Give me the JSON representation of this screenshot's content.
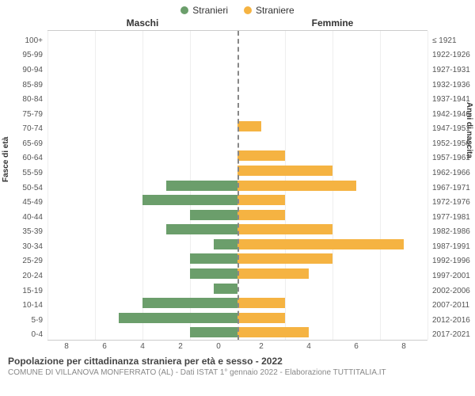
{
  "legend": {
    "male": {
      "label": "Stranieri",
      "color": "#6b9e6b"
    },
    "female": {
      "label": "Straniere",
      "color": "#f5b342"
    }
  },
  "headers": {
    "left": "Maschi",
    "right": "Femmine"
  },
  "axis_left_title": "Fasce di età",
  "axis_right_title": "Anni di nascita",
  "x_max": 8,
  "x_ticks": [
    0,
    2,
    4,
    6,
    8
  ],
  "grid_color": "#eeeeee",
  "rows": [
    {
      "age": "100+",
      "birth": "≤ 1921",
      "m": 0,
      "f": 0
    },
    {
      "age": "95-99",
      "birth": "1922-1926",
      "m": 0,
      "f": 0
    },
    {
      "age": "90-94",
      "birth": "1927-1931",
      "m": 0,
      "f": 0
    },
    {
      "age": "85-89",
      "birth": "1932-1936",
      "m": 0,
      "f": 0
    },
    {
      "age": "80-84",
      "birth": "1937-1941",
      "m": 0,
      "f": 0
    },
    {
      "age": "75-79",
      "birth": "1942-1946",
      "m": 0,
      "f": 0
    },
    {
      "age": "70-74",
      "birth": "1947-1951",
      "m": 0,
      "f": 1
    },
    {
      "age": "65-69",
      "birth": "1952-1956",
      "m": 0,
      "f": 0
    },
    {
      "age": "60-64",
      "birth": "1957-1961",
      "m": 0,
      "f": 2
    },
    {
      "age": "55-59",
      "birth": "1962-1966",
      "m": 0,
      "f": 4
    },
    {
      "age": "50-54",
      "birth": "1967-1971",
      "m": 3,
      "f": 5
    },
    {
      "age": "45-49",
      "birth": "1972-1976",
      "m": 4,
      "f": 2
    },
    {
      "age": "40-44",
      "birth": "1977-1981",
      "m": 2,
      "f": 2
    },
    {
      "age": "35-39",
      "birth": "1982-1986",
      "m": 3,
      "f": 4
    },
    {
      "age": "30-34",
      "birth": "1987-1991",
      "m": 1,
      "f": 7
    },
    {
      "age": "25-29",
      "birth": "1992-1996",
      "m": 2,
      "f": 4
    },
    {
      "age": "20-24",
      "birth": "1997-2001",
      "m": 2,
      "f": 3
    },
    {
      "age": "15-19",
      "birth": "2002-2006",
      "m": 1,
      "f": 0
    },
    {
      "age": "10-14",
      "birth": "2007-2011",
      "m": 4,
      "f": 2
    },
    {
      "age": "5-9",
      "birth": "2012-2016",
      "m": 5,
      "f": 2
    },
    {
      "age": "0-4",
      "birth": "2017-2021",
      "m": 2,
      "f": 3
    }
  ],
  "footer": {
    "title": "Popolazione per cittadinanza straniera per età e sesso - 2022",
    "sub": "COMUNE DI VILLANOVA MONFERRATO (AL) - Dati ISTAT 1° gennaio 2022 - Elaborazione TUTTITALIA.IT"
  }
}
